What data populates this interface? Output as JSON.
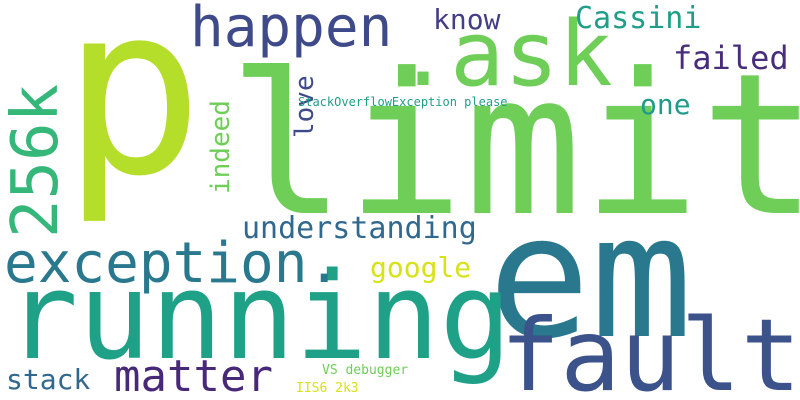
{
  "words": [
    {
      "id": "p",
      "text": "p",
      "color": "#b5de2b"
    },
    {
      "id": "limit",
      "text": "limit",
      "color": "#6ece58"
    },
    {
      "id": "em",
      "text": "em",
      "color": "#2a788e"
    },
    {
      "id": "running",
      "text": "running",
      "color": "#1fa187"
    },
    {
      "id": "ask",
      "text": ".ask.",
      "color": "#6ece58"
    },
    {
      "id": "fault",
      "text": "fault",
      "color": "#3b528b"
    },
    {
      "id": "k256",
      "text": "256k",
      "color": "#35b779"
    },
    {
      "id": "exception",
      "text": "exception.",
      "color": "#2a788e"
    },
    {
      "id": "happen",
      "text": "happen",
      "color": "#3e4a89"
    },
    {
      "id": "matter",
      "text": "matter",
      "color": "#482878"
    },
    {
      "id": "understanding",
      "text": "understanding",
      "color": "#31688e"
    },
    {
      "id": "cassini",
      "text": "Cassini",
      "color": "#1f9e89"
    },
    {
      "id": "failed",
      "text": "failed",
      "color": "#472d7b"
    },
    {
      "id": "know",
      "text": "know",
      "color": "#433e85"
    },
    {
      "id": "one",
      "text": "one",
      "color": "#1e9b8a"
    },
    {
      "id": "google",
      "text": "google",
      "color": "#d8e219"
    },
    {
      "id": "love",
      "text": "love",
      "color": "#3e4a89"
    },
    {
      "id": "indeed",
      "text": "indeed",
      "color": "#6ece58"
    },
    {
      "id": "stack",
      "text": "stack",
      "color": "#31688e"
    },
    {
      "id": "soe",
      "text": "StackOverflowException please",
      "color": "#1f9e89"
    },
    {
      "id": "vsdebugger",
      "text": "VS debugger",
      "color": "#6ece58"
    },
    {
      "id": "iis",
      "text": "IIS6 2k3",
      "color": "#d8e219"
    }
  ]
}
